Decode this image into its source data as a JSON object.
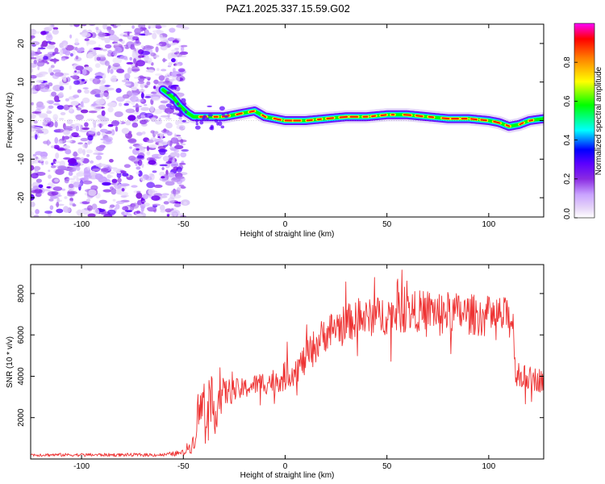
{
  "title": "PAZ1.2025.337.15.59.G02",
  "chart_data": [
    {
      "type": "heatmap",
      "title": "PAZ1.2025.337.15.59.G02",
      "xlabel": "Height of straight line (km)",
      "ylabel": "Frequency (Hz)",
      "xlim": [
        -125,
        127
      ],
      "ylim": [
        -25,
        25
      ],
      "xticks": [
        -100,
        -50,
        0,
        50,
        100
      ],
      "yticks": [
        -20,
        -10,
        0,
        10,
        20
      ],
      "noise_region_x": [
        -125,
        -50
      ],
      "ridge": {
        "x": [
          -60,
          -55,
          -52,
          -48,
          -45,
          -40,
          -30,
          -20,
          -15,
          -10,
          0,
          10,
          20,
          30,
          40,
          50,
          60,
          70,
          80,
          90,
          100,
          105,
          110,
          115,
          120,
          127
        ],
        "frequency": [
          8,
          6,
          4,
          2,
          1,
          1,
          1,
          2,
          2.5,
          1,
          0,
          0,
          0.5,
          1,
          1,
          1.5,
          1.5,
          1,
          0.5,
          0.5,
          0,
          -0.5,
          -1.5,
          -1,
          0,
          0.5
        ]
      },
      "colorbar": {
        "label": "Normalized spectral amplitude",
        "range": [
          0,
          1
        ],
        "ticks": [
          0.0,
          0.2,
          0.4,
          0.6,
          0.8
        ],
        "tick_labels": [
          "0.0",
          "0.2",
          "0.4",
          "0.6",
          "0.8"
        ],
        "colors": [
          "#ffffff",
          "#e6d5f8",
          "#c9a3ff",
          "#8a2be2",
          "#5a00ff",
          "#0000ff",
          "#00ffff",
          "#00ff00",
          "#ffff00",
          "#ff8000",
          "#ff0000",
          "#ff00ff"
        ]
      }
    },
    {
      "type": "line",
      "title": "",
      "xlabel": "Height of straight line (km)",
      "ylabel": "SNR (10 * v/v)",
      "xlim": [
        -125,
        127
      ],
      "ylim": [
        0,
        9400
      ],
      "xticks": [
        -100,
        -50,
        0,
        50,
        100
      ],
      "yticks": [
        2000,
        4000,
        6000,
        8000
      ],
      "color": "#ee3333",
      "series": [
        {
          "name": "SNR",
          "envelope_x": [
            -125,
            -60,
            -50,
            -45,
            -43,
            -40,
            -37,
            -35,
            -32,
            -30,
            -25,
            -20,
            -15,
            -10,
            -5,
            0,
            5,
            10,
            15,
            20,
            25,
            30,
            35,
            40,
            50,
            60,
            70,
            80,
            90,
            100,
            105,
            110,
            112,
            113,
            115,
            120,
            127
          ],
          "envelope_y": [
            200,
            200,
            300,
            800,
            2000,
            2700,
            2900,
            2300,
            3000,
            3200,
            3300,
            3400,
            3600,
            3700,
            3800,
            4000,
            4300,
            4800,
            5500,
            6100,
            6400,
            6600,
            6700,
            6800,
            7000,
            7100,
            7200,
            7100,
            7000,
            6900,
            6900,
            6800,
            6700,
            4200,
            4000,
            3900,
            3800
          ],
          "spread_y": [
            80,
            80,
            150,
            500,
            900,
            1300,
            1400,
            1300,
            1000,
            700,
            600,
            500,
            500,
            600,
            600,
            700,
            700,
            800,
            900,
            900,
            900,
            900,
            900,
            900,
            1000,
            1000,
            1000,
            1000,
            1000,
            1000,
            1000,
            1000,
            1000,
            600,
            600,
            600,
            600
          ]
        }
      ]
    }
  ]
}
